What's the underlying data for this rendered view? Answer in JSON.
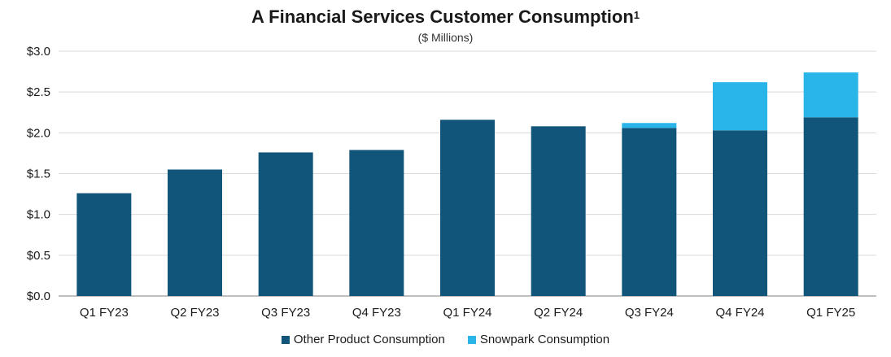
{
  "chart_data": {
    "type": "bar",
    "stacked": true,
    "title": "A Financial Services Customer Consumption",
    "title_superscript": "1",
    "subtitle": "($ Millions)",
    "categories": [
      "Q1 FY23",
      "Q2 FY23",
      "Q3 FY23",
      "Q4 FY23",
      "Q1 FY24",
      "Q2 FY24",
      "Q3 FY24",
      "Q4 FY24",
      "Q1 FY25"
    ],
    "series": [
      {
        "name": "Other Product Consumption",
        "color": "#12557a",
        "values": [
          1.26,
          1.55,
          1.76,
          1.79,
          2.16,
          2.08,
          2.06,
          2.03,
          2.19
        ]
      },
      {
        "name": "Snowpark Consumption",
        "color": "#29b5e8",
        "values": [
          0,
          0,
          0,
          0,
          0,
          0,
          0.06,
          0.59,
          0.55
        ]
      }
    ],
    "ylim": [
      0,
      3.0
    ],
    "yticks": [
      0.0,
      0.5,
      1.0,
      1.5,
      2.0,
      2.5,
      3.0
    ],
    "ytick_labels": [
      "$0.0",
      "$0.5",
      "$1.0",
      "$1.5",
      "$2.0",
      "$2.5",
      "$3.0"
    ],
    "grid": true,
    "legend_position": "bottom-center"
  }
}
